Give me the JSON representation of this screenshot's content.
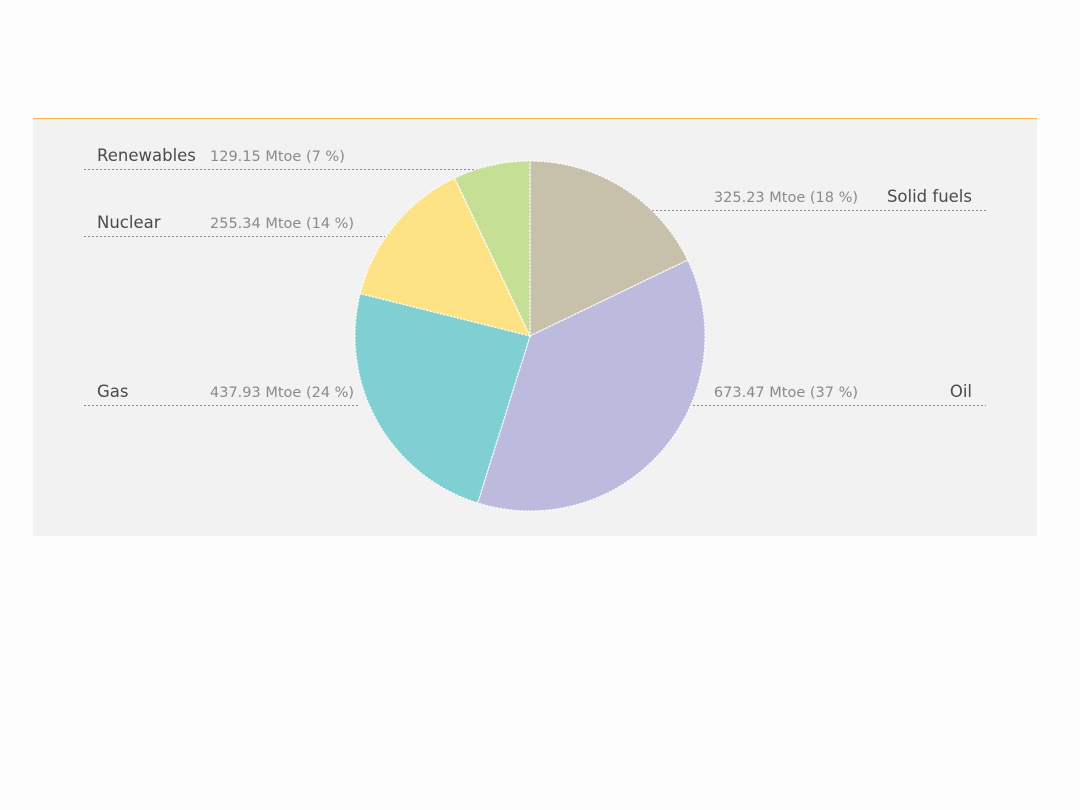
{
  "chart_data": {
    "type": "pie",
    "unit": "Mtoe",
    "slices": [
      {
        "name": "Solid fuels",
        "value": 325.23,
        "percent": 18,
        "label": "325.23 Mtoe (18 %)",
        "color": "#c7c0ab"
      },
      {
        "name": "Oil",
        "value": 673.47,
        "percent": 37,
        "label": "673.47 Mtoe (37 %)",
        "color": "#bdbbdd"
      },
      {
        "name": "Gas",
        "value": 437.93,
        "percent": 24,
        "label": "437.93 Mtoe (24 %)",
        "color": "#80cfd2"
      },
      {
        "name": "Nuclear",
        "value": 255.34,
        "percent": 14,
        "label": "255.34 Mtoe (14 %)",
        "color": "#fee386"
      },
      {
        "name": "Renewables",
        "value": 129.15,
        "percent": 7,
        "label": "129.15 Mtoe (7 %)",
        "color": "#c5df95"
      }
    ],
    "start_angle_deg": 0,
    "direction": "clockwise",
    "legend": "leader-lines"
  },
  "colors": {
    "panel_background": "#f2f2f2",
    "panel_top_rule": "#f5b547",
    "leader_line": "#8a8a8a"
  }
}
